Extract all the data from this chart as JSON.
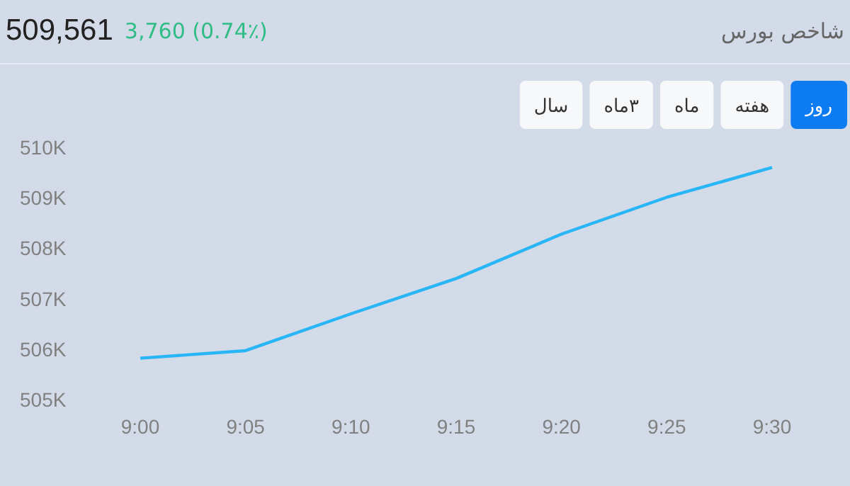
{
  "chart_data": {
    "type": "line",
    "categories": [
      "9:00",
      "9:05",
      "9:10",
      "9:15",
      "9:20",
      "9:25",
      "9:30"
    ],
    "series": [
      {
        "color": "#29b6f6",
        "values": [
          505820,
          505970,
          506700,
          507400,
          508280,
          509010,
          509600
        ]
      }
    ],
    "ylim": [
      505000,
      510000
    ],
    "yticks": [
      {
        "value": 505000,
        "label": "505K"
      },
      {
        "value": 506000,
        "label": "506K"
      },
      {
        "value": 507000,
        "label": "507K"
      },
      {
        "value": 508000,
        "label": "508K"
      },
      {
        "value": 509000,
        "label": "509K"
      },
      {
        "value": 510000,
        "label": "510K"
      }
    ],
    "grid": false,
    "marker": "none",
    "annotations": [
      "509,561",
      "3,760 (0.74٪)",
      "شاخص بورس",
      "روز",
      "هفته",
      "ماه",
      "۳ماه",
      "سال"
    ]
  }
}
